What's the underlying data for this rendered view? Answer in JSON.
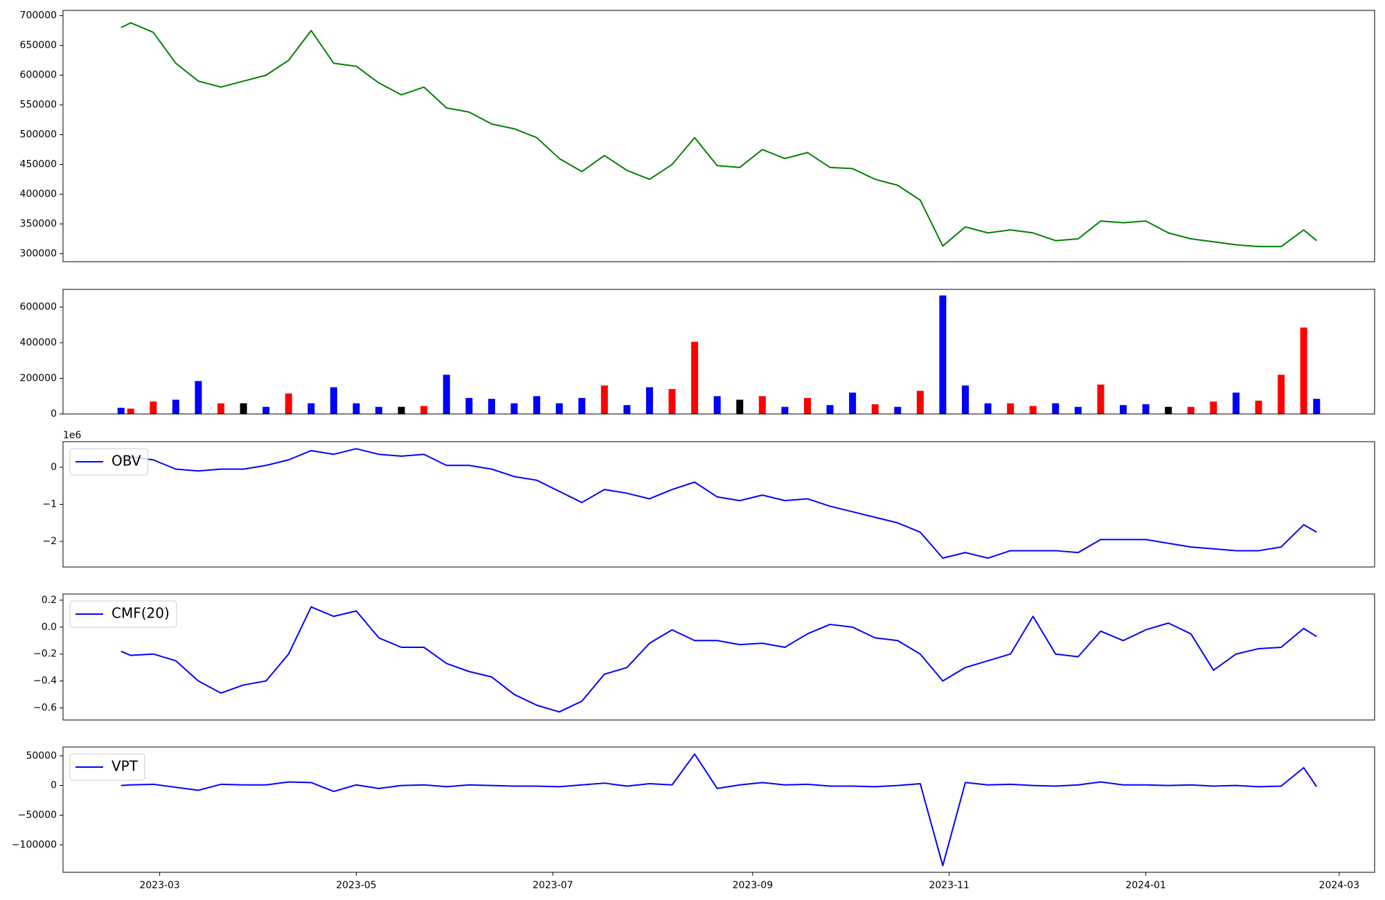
{
  "chart_data": [
    {
      "type": "line",
      "x": [
        "2023-02-17",
        "2023-02-20",
        "2023-02-27",
        "2023-03-06",
        "2023-03-13",
        "2023-03-20",
        "2023-03-27",
        "2023-04-03",
        "2023-04-10",
        "2023-04-17",
        "2023-04-24",
        "2023-05-01",
        "2023-05-08",
        "2023-05-15",
        "2023-05-22",
        "2023-05-29",
        "2023-06-05",
        "2023-06-12",
        "2023-06-19",
        "2023-06-26",
        "2023-07-03",
        "2023-07-10",
        "2023-07-17",
        "2023-07-24",
        "2023-07-31",
        "2023-08-07",
        "2023-08-14",
        "2023-08-21",
        "2023-08-28",
        "2023-09-04",
        "2023-09-11",
        "2023-09-18",
        "2023-09-25",
        "2023-10-02",
        "2023-10-09",
        "2023-10-16",
        "2023-10-23",
        "2023-10-30",
        "2023-11-06",
        "2023-11-13",
        "2023-11-20",
        "2023-11-27",
        "2023-12-04",
        "2023-12-11",
        "2023-12-18",
        "2023-12-25",
        "2024-01-01",
        "2024-01-08",
        "2024-01-15",
        "2024-01-22",
        "2024-01-29",
        "2024-02-05",
        "2024-02-12",
        "2024-02-19",
        "2024-02-23"
      ],
      "series": [
        {
          "color": "#008000",
          "values": [
            680000,
            688000,
            672000,
            620000,
            590000,
            580000,
            590000,
            600000,
            625000,
            675000,
            620000,
            615000,
            587000,
            567000,
            580000,
            545000,
            538000,
            518000,
            510000,
            495000,
            460000,
            438000,
            465000,
            440000,
            425000,
            450000,
            495000,
            448000,
            445000,
            475000,
            460000,
            470000,
            445000,
            443000,
            425000,
            415000,
            390000,
            313000,
            345000,
            335000,
            340000,
            335000,
            322000,
            325000,
            355000,
            352000,
            355000,
            335000,
            325000,
            320000,
            315000,
            312000,
            312000,
            340000,
            322000
          ]
        }
      ],
      "xlim": [
        "2023-01-30",
        "2024-03-12"
      ],
      "ylim": [
        286600,
        708900
      ],
      "yticks": [
        300000,
        350000,
        400000,
        450000,
        500000,
        550000,
        600000,
        650000,
        700000
      ]
    },
    {
      "type": "bar",
      "x": [
        "2023-02-17",
        "2023-02-20",
        "2023-02-27",
        "2023-03-06",
        "2023-03-13",
        "2023-03-20",
        "2023-03-27",
        "2023-04-03",
        "2023-04-10",
        "2023-04-17",
        "2023-04-24",
        "2023-05-01",
        "2023-05-08",
        "2023-05-15",
        "2023-05-22",
        "2023-05-29",
        "2023-06-05",
        "2023-06-12",
        "2023-06-19",
        "2023-06-26",
        "2023-07-03",
        "2023-07-10",
        "2023-07-17",
        "2023-07-24",
        "2023-07-31",
        "2023-08-07",
        "2023-08-14",
        "2023-08-21",
        "2023-08-28",
        "2023-09-04",
        "2023-09-11",
        "2023-09-18",
        "2023-09-25",
        "2023-10-02",
        "2023-10-09",
        "2023-10-16",
        "2023-10-23",
        "2023-10-30",
        "2023-11-06",
        "2023-11-13",
        "2023-11-20",
        "2023-11-27",
        "2023-12-04",
        "2023-12-11",
        "2023-12-18",
        "2023-12-25",
        "2024-01-01",
        "2024-01-08",
        "2024-01-15",
        "2024-01-22",
        "2024-01-29",
        "2024-02-05",
        "2024-02-12",
        "2024-02-19",
        "2024-02-23"
      ],
      "values": [
        35000,
        30000,
        70000,
        80000,
        185000,
        60000,
        60000,
        40000,
        115000,
        60000,
        150000,
        60000,
        40000,
        40000,
        45000,
        220000,
        90000,
        85000,
        60000,
        100000,
        60000,
        90000,
        160000,
        50000,
        150000,
        140000,
        405000,
        100000,
        80000,
        100000,
        40000,
        90000,
        50000,
        120000,
        55000,
        40000,
        130000,
        665000,
        160000,
        60000,
        60000,
        45000,
        60000,
        40000,
        165000,
        50000,
        55000,
        40000,
        40000,
        70000,
        120000,
        75000,
        220000,
        485000,
        85000
      ],
      "colors": [
        "#0000ff",
        "#ff0000",
        "#ff0000",
        "#0000ff",
        "#0000ff",
        "#ff0000",
        "#000000",
        "#0000ff",
        "#ff0000",
        "#0000ff",
        "#0000ff",
        "#0000ff",
        "#0000ff",
        "#000000",
        "#ff0000",
        "#0000ff",
        "#0000ff",
        "#0000ff",
        "#0000ff",
        "#0000ff",
        "#0000ff",
        "#0000ff",
        "#ff0000",
        "#0000ff",
        "#0000ff",
        "#ff0000",
        "#ff0000",
        "#0000ff",
        "#000000",
        "#ff0000",
        "#0000ff",
        "#ff0000",
        "#0000ff",
        "#0000ff",
        "#ff0000",
        "#0000ff",
        "#ff0000",
        "#0000ff",
        "#0000ff",
        "#0000ff",
        "#ff0000",
        "#ff0000",
        "#0000ff",
        "#0000ff",
        "#ff0000",
        "#0000ff",
        "#0000ff",
        "#000000",
        "#ff0000",
        "#ff0000",
        "#0000ff",
        "#ff0000",
        "#ff0000",
        "#ff0000",
        "#0000ff"
      ],
      "xlim": [
        "2023-01-30",
        "2024-03-12"
      ],
      "ylim": [
        0,
        699000
      ],
      "yticks": [
        0,
        200000,
        400000,
        600000
      ]
    },
    {
      "type": "line",
      "x": [
        "2023-02-17",
        "2023-02-20",
        "2023-02-27",
        "2023-03-06",
        "2023-03-13",
        "2023-03-20",
        "2023-03-27",
        "2023-04-03",
        "2023-04-10",
        "2023-04-17",
        "2023-04-24",
        "2023-05-01",
        "2023-05-08",
        "2023-05-15",
        "2023-05-22",
        "2023-05-29",
        "2023-06-05",
        "2023-06-12",
        "2023-06-19",
        "2023-06-26",
        "2023-07-03",
        "2023-07-10",
        "2023-07-17",
        "2023-07-24",
        "2023-07-31",
        "2023-08-07",
        "2023-08-14",
        "2023-08-21",
        "2023-08-28",
        "2023-09-04",
        "2023-09-11",
        "2023-09-18",
        "2023-09-25",
        "2023-10-02",
        "2023-10-09",
        "2023-10-16",
        "2023-10-23",
        "2023-10-30",
        "2023-11-06",
        "2023-11-13",
        "2023-11-20",
        "2023-11-27",
        "2023-12-04",
        "2023-12-11",
        "2023-12-18",
        "2023-12-25",
        "2024-01-01",
        "2024-01-08",
        "2024-01-15",
        "2024-01-22",
        "2024-01-29",
        "2024-02-05",
        "2024-02-12",
        "2024-02-19",
        "2024-02-23"
      ],
      "series": [
        {
          "name": "OBV",
          "color": "#0000ff",
          "values": [
            0.25,
            0.28,
            0.2,
            -0.05,
            -0.1,
            -0.05,
            -0.05,
            0.05,
            0.2,
            0.45,
            0.35,
            0.5,
            0.35,
            0.3,
            0.35,
            0.05,
            0.05,
            -0.05,
            -0.25,
            -0.35,
            -0.65,
            -0.95,
            -0.6,
            -0.7,
            -0.85,
            -0.6,
            -0.4,
            -0.8,
            -0.9,
            -0.75,
            -0.9,
            -0.85,
            -1.05,
            -1.2,
            -1.35,
            -1.5,
            -1.75,
            -2.45,
            -2.3,
            -2.45,
            -2.25,
            -2.25,
            -2.25,
            -2.3,
            -1.95,
            -1.95,
            -1.95,
            -2.05,
            -2.15,
            -2.2,
            -2.25,
            -2.25,
            -2.15,
            -1.55,
            -1.75
          ]
        }
      ],
      "offset_label": "1e6",
      "legend": "upper left",
      "xlim": [
        "2023-01-30",
        "2024-03-12"
      ],
      "ylim": [
        -2.69,
        0.69
      ],
      "yticks": [
        {
          "value": -2,
          "label": "−2"
        },
        {
          "value": -1,
          "label": "−1"
        },
        0
      ]
    },
    {
      "type": "line",
      "x": [
        "2023-02-17",
        "2023-02-20",
        "2023-02-27",
        "2023-03-06",
        "2023-03-13",
        "2023-03-20",
        "2023-03-27",
        "2023-04-03",
        "2023-04-10",
        "2023-04-17",
        "2023-04-24",
        "2023-05-01",
        "2023-05-08",
        "2023-05-15",
        "2023-05-22",
        "2023-05-29",
        "2023-06-05",
        "2023-06-12",
        "2023-06-19",
        "2023-06-26",
        "2023-07-03",
        "2023-07-10",
        "2023-07-17",
        "2023-07-24",
        "2023-07-31",
        "2023-08-07",
        "2023-08-14",
        "2023-08-21",
        "2023-08-28",
        "2023-09-04",
        "2023-09-11",
        "2023-09-18",
        "2023-09-25",
        "2023-10-02",
        "2023-10-09",
        "2023-10-16",
        "2023-10-23",
        "2023-10-30",
        "2023-11-06",
        "2023-11-13",
        "2023-11-20",
        "2023-11-27",
        "2023-12-04",
        "2023-12-11",
        "2023-12-18",
        "2023-12-25",
        "2024-01-01",
        "2024-01-08",
        "2024-01-15",
        "2024-01-22",
        "2024-01-29",
        "2024-02-05",
        "2024-02-12",
        "2024-02-19",
        "2024-02-23"
      ],
      "series": [
        {
          "name": "CMF(20)",
          "color": "#0000ff",
          "values": [
            -0.18,
            -0.21,
            -0.2,
            -0.25,
            -0.4,
            -0.49,
            -0.43,
            -0.4,
            -0.2,
            0.15,
            0.08,
            0.12,
            -0.08,
            -0.15,
            -0.15,
            -0.27,
            -0.33,
            -0.37,
            -0.5,
            -0.58,
            -0.63,
            -0.55,
            -0.35,
            -0.3,
            -0.12,
            -0.02,
            -0.1,
            -0.1,
            -0.13,
            -0.12,
            -0.15,
            -0.05,
            0.02,
            0.0,
            -0.08,
            -0.1,
            -0.2,
            -0.4,
            -0.3,
            -0.25,
            -0.2,
            0.08,
            -0.2,
            -0.22,
            -0.03,
            -0.1,
            -0.02,
            0.03,
            -0.05,
            -0.32,
            -0.2,
            -0.16,
            -0.15,
            -0.01,
            -0.07
          ]
        }
      ],
      "legend": "upper left",
      "xlim": [
        "2023-01-30",
        "2024-03-12"
      ],
      "ylim": [
        -0.69,
        0.246
      ],
      "yticks": [
        {
          "value": -0.6,
          "label": "−0.6"
        },
        {
          "value": -0.4,
          "label": "−0.4"
        },
        {
          "value": -0.2,
          "label": "−0.2"
        },
        {
          "value": 0,
          "label": "0.0"
        },
        0.2
      ]
    },
    {
      "type": "line",
      "x": [
        "2023-02-17",
        "2023-02-20",
        "2023-02-27",
        "2023-03-06",
        "2023-03-13",
        "2023-03-20",
        "2023-03-27",
        "2023-04-03",
        "2023-04-10",
        "2023-04-17",
        "2023-04-24",
        "2023-05-01",
        "2023-05-08",
        "2023-05-15",
        "2023-05-22",
        "2023-05-29",
        "2023-06-05",
        "2023-06-12",
        "2023-06-19",
        "2023-06-26",
        "2023-07-03",
        "2023-07-10",
        "2023-07-17",
        "2023-07-24",
        "2023-07-31",
        "2023-08-07",
        "2023-08-14",
        "2023-08-21",
        "2023-08-28",
        "2023-09-04",
        "2023-09-11",
        "2023-09-18",
        "2023-09-25",
        "2023-10-02",
        "2023-10-09",
        "2023-10-16",
        "2023-10-23",
        "2023-10-30",
        "2023-11-06",
        "2023-11-13",
        "2023-11-20",
        "2023-11-27",
        "2023-12-04",
        "2023-12-11",
        "2023-12-18",
        "2023-12-25",
        "2024-01-01",
        "2024-01-08",
        "2024-01-15",
        "2024-01-22",
        "2024-01-29",
        "2024-02-05",
        "2024-02-12",
        "2024-02-19",
        "2024-02-23"
      ],
      "series": [
        {
          "name": "VPT",
          "color": "#0000ff",
          "values": [
            0,
            1000,
            2000,
            -3000,
            -8000,
            2000,
            1000,
            1000,
            6000,
            5000,
            -10000,
            1000,
            -5000,
            0,
            1000,
            -2000,
            1000,
            0,
            -1000,
            -1000,
            -2000,
            1000,
            4000,
            -1000,
            3000,
            1000,
            53000,
            -5000,
            1000,
            5000,
            1000,
            2000,
            -1000,
            -1000,
            -2000,
            0,
            3000,
            -135000,
            5000,
            1000,
            2000,
            0,
            -1000,
            1000,
            6000,
            1000,
            1000,
            0,
            1000,
            -1000,
            0,
            -2000,
            -1000,
            30000,
            -2000
          ]
        }
      ],
      "legend": "upper left",
      "xlim": [
        "2023-01-30",
        "2024-03-12"
      ],
      "ylim": [
        -146300,
        64900
      ],
      "yticks": [
        {
          "value": -100000,
          "label": "−100000"
        },
        {
          "value": -50000,
          "label": "−50000"
        },
        0,
        50000
      ],
      "xticks": [
        "2023-03",
        "2023-05",
        "2023-07",
        "2023-09",
        "2023-11",
        "2024-01",
        "2024-03"
      ]
    }
  ]
}
